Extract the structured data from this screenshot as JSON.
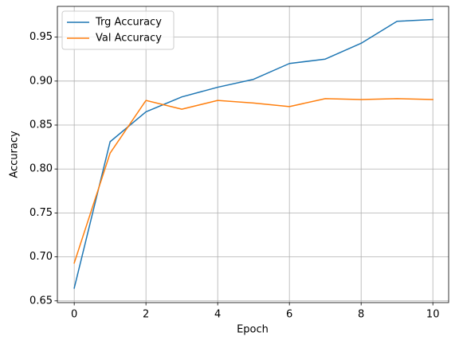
{
  "chart_data": {
    "type": "line",
    "x": [
      0,
      1,
      2,
      3,
      4,
      5,
      6,
      7,
      8,
      9,
      10
    ],
    "series": [
      {
        "name": "Trg Accuracy",
        "color": "#1f77b4",
        "values": [
          0.6645,
          0.831,
          0.865,
          0.882,
          0.893,
          0.902,
          0.92,
          0.925,
          0.943,
          0.968,
          0.97
        ]
      },
      {
        "name": "Val Accuracy",
        "color": "#ff7f0e",
        "values": [
          0.693,
          0.818,
          0.878,
          0.868,
          0.878,
          0.875,
          0.871,
          0.88,
          0.879,
          0.88,
          0.879
        ]
      }
    ],
    "xlabel": "Epoch",
    "ylabel": "Accuracy",
    "xlim": [
      -0.47,
      10.44
    ],
    "ylim": [
      0.648,
      0.985
    ],
    "xticks": [
      0,
      2,
      4,
      6,
      8,
      10
    ],
    "yticks": [
      0.65,
      {
        "value": 0.7,
        "label": "0.70"
      },
      0.75,
      {
        "value": 0.8,
        "label": "0.80"
      },
      0.85,
      {
        "value": 0.9,
        "label": "0.90"
      },
      0.95
    ],
    "grid": true,
    "legend": "upper-left"
  }
}
